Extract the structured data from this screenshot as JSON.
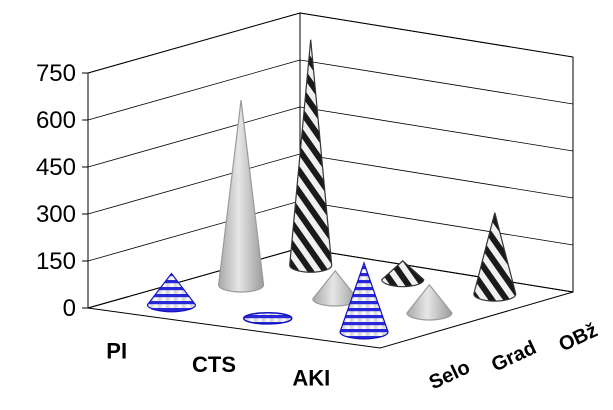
{
  "chart_data": {
    "type": "bar",
    "subtype": "3d-cone",
    "title": "",
    "xlabel": "",
    "ylabel": "",
    "ylim": [
      0,
      750
    ],
    "yticks": [
      "0",
      "150",
      "300",
      "450",
      "600",
      "750"
    ],
    "categories": [
      "PI",
      "CTS",
      "AKI"
    ],
    "series": [
      {
        "name": "Selo",
        "values": [
          100,
          5,
          220
        ],
        "pattern": "horizontal-stripes",
        "color": "#2020d0"
      },
      {
        "name": "Grad",
        "values": [
          590,
          90,
          90
        ],
        "pattern": "solid",
        "color": "#c8c8c8"
      },
      {
        "name": "OBž",
        "values": [
          720,
          60,
          260
        ],
        "pattern": "diagonal-stripes",
        "color": "#202020"
      }
    ],
    "grid": true,
    "legend": "none"
  }
}
